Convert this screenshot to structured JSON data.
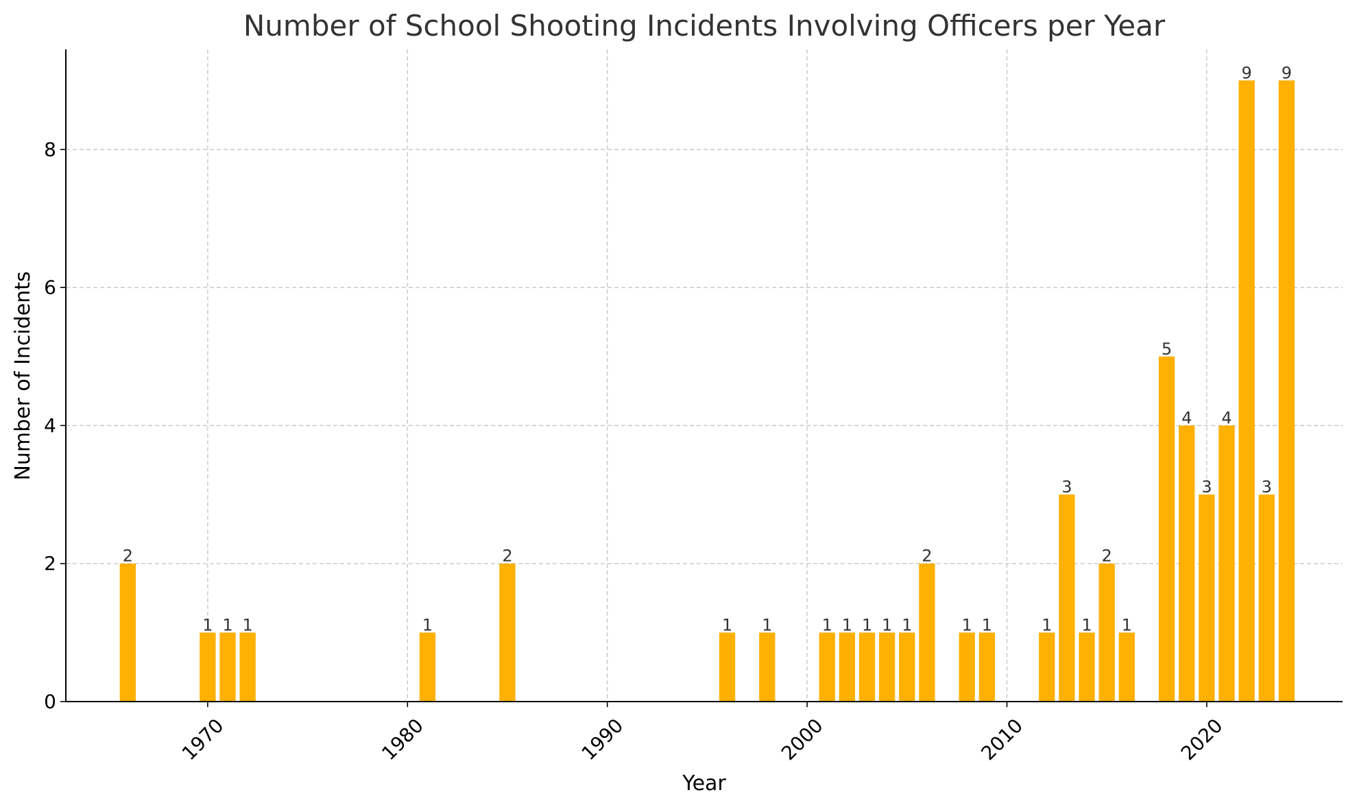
{
  "chart_data": {
    "type": "bar",
    "title": "Number of School Shooting Incidents Involving Officers per Year",
    "xlabel": "Year",
    "ylabel": "Number of Incidents",
    "xlim": [
      1962.9,
      2026.8
    ],
    "ylim": [
      0,
      9.45
    ],
    "x_ticks": [
      1970,
      1980,
      1990,
      2000,
      2010,
      2020
    ],
    "y_ticks": [
      0,
      2,
      4,
      6,
      8
    ],
    "grid": true,
    "bar_color": "#FFB000",
    "categories": [
      1966,
      1970,
      1971,
      1972,
      1981,
      1985,
      1996,
      1998,
      2001,
      2002,
      2003,
      2004,
      2005,
      2006,
      2008,
      2009,
      2012,
      2013,
      2014,
      2015,
      2016,
      2018,
      2019,
      2020,
      2021,
      2022,
      2023,
      2024
    ],
    "values": [
      2,
      1,
      1,
      1,
      1,
      2,
      1,
      1,
      1,
      1,
      1,
      1,
      1,
      2,
      1,
      1,
      1,
      3,
      1,
      2,
      1,
      5,
      4,
      3,
      4,
      9,
      3,
      9
    ],
    "data_labels": [
      "2",
      "1",
      "1",
      "1",
      "1",
      "2",
      "1",
      "1",
      "1",
      "1",
      "1",
      "1",
      "1",
      "2",
      "1",
      "1",
      "1",
      "3",
      "1",
      "2",
      "1",
      "5",
      "4",
      "3",
      "4",
      "9",
      "3",
      "9"
    ]
  }
}
